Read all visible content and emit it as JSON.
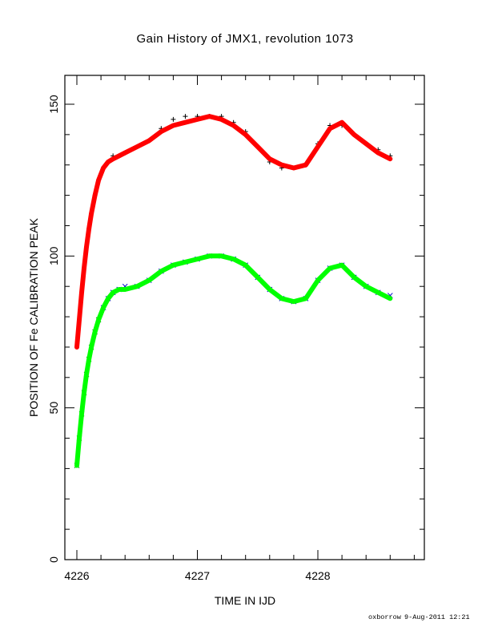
{
  "chart_data": {
    "type": "scatter",
    "title": "Gain History of JMX1, revolution 1073",
    "xlabel": "TIME IN IJD",
    "ylabel": "POSITION OF Fe CALIBRATION PEAK",
    "xlim": [
      4225.85,
      4228.88
    ],
    "ylim": [
      0,
      160
    ],
    "x_ticks": [
      4226,
      4227,
      4228
    ],
    "x_tick_labels": [
      "4226",
      "4227",
      "4228"
    ],
    "y_ticks": [
      0,
      50,
      100,
      150
    ],
    "y_tick_labels": [
      "0",
      "50",
      "100",
      "150"
    ],
    "grid": false,
    "legend": "none",
    "series": [
      {
        "marker": "plus",
        "color": "#000000",
        "early_color": "#cc0000",
        "x": [
          4226.0,
          4226.02,
          4226.04,
          4226.06,
          4226.08,
          4226.1,
          4226.12,
          4226.15,
          4226.18,
          4226.22,
          4226.26,
          4226.3,
          4226.35,
          4226.4,
          4226.5,
          4226.6,
          4226.7,
          4226.8,
          4226.9,
          4227.0,
          4227.1,
          4227.2,
          4227.3,
          4227.4,
          4227.5,
          4227.6,
          4227.7,
          4227.8,
          4227.9,
          4228.0,
          4228.1,
          4228.2,
          4228.3,
          4228.4,
          4228.5,
          4228.6
        ],
        "y": [
          70,
          79,
          88,
          96,
          103,
          109,
          114,
          120,
          125,
          129,
          131,
          133,
          133,
          134,
          136,
          138,
          142,
          145,
          146,
          146,
          146,
          146,
          144,
          141,
          136,
          131,
          129,
          129,
          130,
          137,
          143,
          143,
          140,
          137,
          135,
          133
        ]
      },
      {
        "name": "",
        "type": "line",
        "color": "#ff0000",
        "x": [
          4226.0,
          4226.02,
          4226.04,
          4226.06,
          4226.08,
          4226.1,
          4226.12,
          4226.15,
          4226.18,
          4226.22,
          4226.26,
          4226.3,
          4226.35,
          4226.4,
          4226.5,
          4226.6,
          4226.7,
          4226.8,
          4226.9,
          4227.0,
          4227.1,
          4227.2,
          4227.3,
          4227.4,
          4227.5,
          4227.6,
          4227.7,
          4227.8,
          4227.9,
          4228.0,
          4228.1,
          4228.2,
          4228.3,
          4228.4,
          4228.5,
          4228.6
        ],
        "y": [
          70,
          79,
          88,
          96,
          103,
          109,
          114,
          120,
          125,
          129,
          131,
          132,
          133,
          134,
          136,
          138,
          141,
          143,
          144,
          145,
          146,
          145,
          143,
          140,
          136,
          132,
          130,
          129,
          130,
          136,
          142,
          144,
          140,
          137,
          134,
          132
        ]
      },
      {
        "marker": "x",
        "color": "#0000cc",
        "early_color": "#008800",
        "x": [
          4226.0,
          4226.02,
          4226.04,
          4226.06,
          4226.08,
          4226.1,
          4226.12,
          4226.15,
          4226.18,
          4226.22,
          4226.26,
          4226.3,
          4226.35,
          4226.4,
          4226.5,
          4226.6,
          4226.7,
          4226.8,
          4226.9,
          4227.0,
          4227.1,
          4227.2,
          4227.3,
          4227.4,
          4227.5,
          4227.6,
          4227.7,
          4227.8,
          4227.9,
          4228.0,
          4228.1,
          4228.2,
          4228.3,
          4228.4,
          4228.5,
          4228.6
        ],
        "y": [
          31,
          40,
          48,
          55,
          61,
          66,
          70,
          75,
          79,
          83,
          86,
          88,
          89,
          90,
          90,
          92,
          95,
          97,
          98,
          99,
          100,
          100,
          99,
          97,
          93,
          89,
          86,
          85,
          86,
          92,
          96,
          97,
          93,
          90,
          88,
          87
        ]
      },
      {
        "name": "",
        "type": "line",
        "color": "#00ff00",
        "x": [
          4226.0,
          4226.02,
          4226.04,
          4226.06,
          4226.08,
          4226.1,
          4226.12,
          4226.15,
          4226.18,
          4226.22,
          4226.26,
          4226.3,
          4226.35,
          4226.4,
          4226.5,
          4226.6,
          4226.7,
          4226.8,
          4226.9,
          4227.0,
          4227.1,
          4227.2,
          4227.3,
          4227.4,
          4227.5,
          4227.6,
          4227.7,
          4227.8,
          4227.9,
          4228.0,
          4228.1,
          4228.2,
          4228.3,
          4228.4,
          4228.5,
          4228.6
        ],
        "y": [
          31,
          40,
          48,
          55,
          61,
          66,
          70,
          75,
          79,
          83,
          86,
          88,
          89,
          89,
          90,
          92,
          95,
          97,
          98,
          99,
          100,
          100,
          99,
          97,
          93,
          89,
          86,
          85,
          86,
          92,
          96,
          97,
          93,
          90,
          88,
          86
        ]
      }
    ]
  },
  "footer": {
    "author": "oxborrow",
    "date": "9-Aug-2011 12:21"
  }
}
